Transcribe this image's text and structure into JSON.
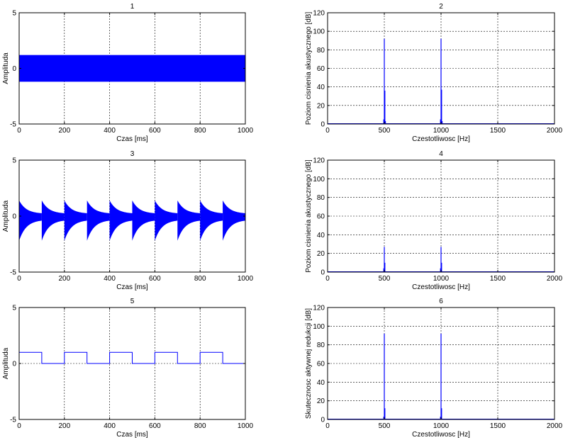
{
  "charts": [
    {
      "title": "1",
      "type": "signal-band",
      "xlabel": "Czas [ms]",
      "ylabel": "Amplituda",
      "xlim": [
        0,
        1000
      ],
      "ylim": [
        -5,
        5
      ],
      "xticks": [
        0,
        200,
        400,
        600,
        800,
        1000
      ],
      "yticks": [
        -5,
        0,
        5
      ],
      "grid": true,
      "color": "#0000ff",
      "envelope": {
        "upper": 1.2,
        "lower": -1.2
      }
    },
    {
      "title": "2",
      "type": "spectrum",
      "xlabel": "Czestotliwosc [Hz]",
      "ylabel": "Poziom cisnienia akustycznego [dB]",
      "xlim": [
        0,
        2000
      ],
      "ylim": [
        0,
        120
      ],
      "xticks": [
        0,
        500,
        1000,
        1500,
        2000
      ],
      "yticks": [
        0,
        20,
        40,
        60,
        80,
        100,
        120
      ],
      "grid": true,
      "color": "#0000ff",
      "peaks": [
        {
          "x": 500,
          "y": 92
        },
        {
          "x": 505,
          "y": 36
        },
        {
          "x": 495,
          "y": 5
        },
        {
          "x": 510,
          "y": 3
        },
        {
          "x": 1000,
          "y": 92
        },
        {
          "x": 1005,
          "y": 37
        },
        {
          "x": 995,
          "y": 5
        },
        {
          "x": 1010,
          "y": 3
        }
      ]
    },
    {
      "title": "3",
      "type": "decay-bursts",
      "xlabel": "Czas [ms]",
      "ylabel": "Amplituda",
      "xlim": [
        0,
        1000
      ],
      "ylim": [
        -5,
        5
      ],
      "xticks": [
        0,
        200,
        400,
        600,
        800,
        1000
      ],
      "yticks": [
        -5,
        0,
        5
      ],
      "grid": true,
      "color": "#0000ff",
      "burst_period": 100,
      "peak_upper": 1.4,
      "peak_lower": -2.2,
      "min_amplitude": 0.15
    },
    {
      "title": "4",
      "type": "spectrum",
      "xlabel": "Czestotliwosc [Hz]",
      "ylabel": "Poziom cisnienia akustycznego [dB]",
      "xlim": [
        0,
        2000
      ],
      "ylim": [
        0,
        120
      ],
      "xticks": [
        0,
        500,
        1000,
        1500,
        2000
      ],
      "yticks": [
        0,
        20,
        40,
        60,
        80,
        100,
        120
      ],
      "grid": true,
      "color": "#0000ff",
      "peaks": [
        {
          "x": 500,
          "y": 27
        },
        {
          "x": 505,
          "y": 10
        },
        {
          "x": 495,
          "y": 4
        },
        {
          "x": 1000,
          "y": 27
        },
        {
          "x": 1005,
          "y": 10
        },
        {
          "x": 995,
          "y": 4
        }
      ]
    },
    {
      "title": "5",
      "type": "square-wave",
      "xlabel": "Czas [ms]",
      "ylabel": "Amplituda",
      "xlim": [
        0,
        1000
      ],
      "ylim": [
        -5,
        5
      ],
      "xticks": [
        0,
        200,
        400,
        600,
        800,
        1000
      ],
      "yticks": [
        -5,
        0,
        5
      ],
      "grid": true,
      "color": "#0000ff",
      "period": 200,
      "high": 1,
      "low": 0
    },
    {
      "title": "6",
      "type": "spectrum",
      "xlabel": "Czestotliwosc [Hz]",
      "ylabel": "Skutecznosc aktywnej redukcji [dB]",
      "xlim": [
        0,
        2000
      ],
      "ylim": [
        0,
        120
      ],
      "xticks": [
        0,
        500,
        1000,
        1500,
        2000
      ],
      "yticks": [
        0,
        20,
        40,
        60,
        80,
        100,
        120
      ],
      "grid": true,
      "color": "#0000ff",
      "peaks": [
        {
          "x": 500,
          "y": 92
        },
        {
          "x": 505,
          "y": 12
        },
        {
          "x": 495,
          "y": 3
        },
        {
          "x": 1000,
          "y": 92
        },
        {
          "x": 1005,
          "y": 12
        },
        {
          "x": 995,
          "y": 3
        }
      ]
    }
  ]
}
